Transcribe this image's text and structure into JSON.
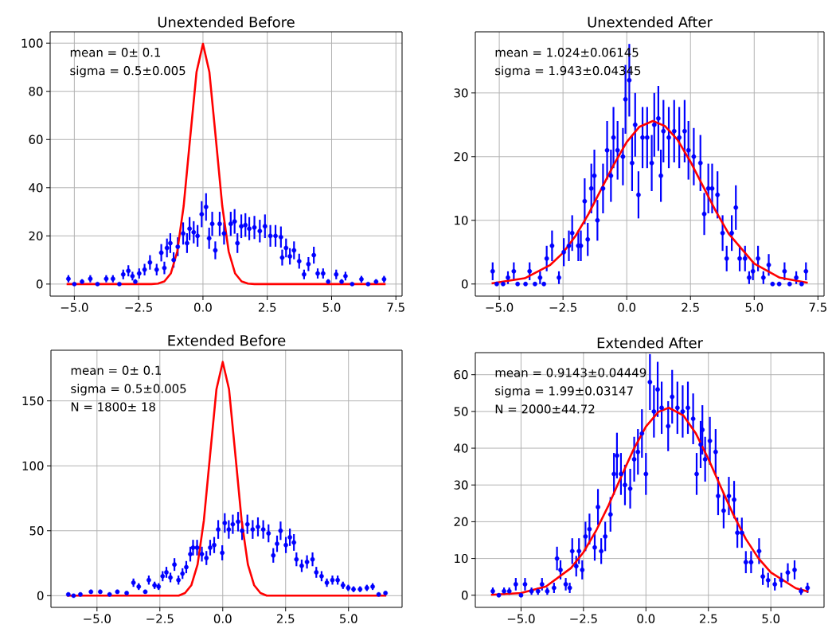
{
  "chart_data": [
    {
      "type": "scatter",
      "title": "Unextended Before",
      "xlim": [
        -5.94,
        7.74
      ],
      "ylim": [
        -5,
        104.7
      ],
      "grid": true,
      "xticks": [
        {
          "value": -5,
          "label": "−5.0"
        },
        {
          "value": -2.5,
          "label": "−2.5"
        },
        {
          "value": 0,
          "label": "0.0"
        },
        {
          "value": 2.5,
          "label": "2.5"
        },
        {
          "value": 5,
          "label": "5.0"
        },
        {
          "value": 7.5,
          "label": "7.5"
        }
      ],
      "yticks": [
        0,
        20,
        40,
        60,
        80,
        100
      ],
      "annotations": [
        "mean = 0± 0.1",
        "sigma = 0.5±0.005"
      ],
      "series": [
        {
          "type": "scatter",
          "color": "#0000ff",
          "marker": "circle",
          "x": [
            -5.23,
            -5.0,
            -4.7,
            -4.38,
            -4.1,
            -3.76,
            -3.5,
            -3.25,
            -3.1,
            -2.9,
            -2.74,
            -2.63,
            -2.48,
            -2.27,
            -2.06,
            -1.8,
            -1.62,
            -1.5,
            -1.4,
            -1.27,
            -1.14,
            -0.98,
            -0.77,
            -0.62,
            -0.52,
            -0.36,
            -0.21,
            -0.05,
            0.12,
            0.24,
            0.36,
            0.48,
            0.65,
            0.82,
            1.08,
            1.23,
            1.34,
            1.49,
            1.65,
            1.8,
            2.0,
            2.21,
            2.41,
            2.62,
            2.82,
            3.03,
            3.08,
            3.23,
            3.38,
            3.54,
            3.74,
            3.93,
            4.1,
            4.31,
            4.46,
            4.67,
            4.87,
            5.18,
            5.39,
            5.54,
            5.8,
            6.16,
            6.42,
            6.73,
            7.04
          ],
          "values": [
            2.2,
            0,
            1,
            2.2,
            0,
            2.2,
            2.2,
            0,
            4,
            5.5,
            3.3,
            1,
            4.4,
            6,
            9,
            6,
            13,
            6.7,
            15,
            17,
            10,
            15.5,
            21,
            17,
            23,
            21.5,
            20,
            29,
            32,
            19,
            25,
            14,
            25,
            21,
            25,
            26,
            17,
            24,
            24.5,
            23,
            23.5,
            22,
            24,
            20,
            20,
            19.5,
            11,
            15,
            11.5,
            14,
            9.5,
            4,
            8.3,
            12,
            4.4,
            4.4,
            1,
            4,
            1,
            3.3,
            0,
            2,
            0,
            1,
            2
          ],
          "errors": [
            1.5,
            0,
            1,
            1.5,
            0,
            1.5,
            1.5,
            0,
            2,
            2.3,
            1.8,
            1,
            2.1,
            2.4,
            3,
            2.4,
            3.6,
            2.6,
            3.9,
            4.1,
            3.2,
            3.9,
            4.6,
            4.1,
            4.8,
            4.6,
            4.5,
            5.4,
            5.7,
            4.4,
            5,
            3.7,
            5,
            4.6,
            5,
            5.1,
            4.1,
            4.9,
            4.9,
            4.8,
            4.8,
            4.7,
            4.9,
            4.5,
            4.5,
            4.4,
            3.3,
            3.9,
            3.4,
            3.7,
            3.1,
            2,
            2.9,
            3.5,
            2.1,
            2.1,
            1,
            2,
            1,
            1.8,
            0,
            1.4,
            0,
            1,
            1.4
          ]
        },
        {
          "type": "line",
          "color": "#ff0000",
          "x": [
            -5.3,
            -2,
            -1.75,
            -1.5,
            -1.25,
            -1,
            -0.75,
            -0.5,
            -0.25,
            0,
            0.25,
            0.5,
            0.75,
            1,
            1.25,
            1.5,
            1.75,
            2,
            7.1
          ],
          "values": [
            0,
            0,
            0.2,
            1.1,
            4.4,
            13.5,
            32.4,
            60.5,
            88,
            99.7,
            88,
            60.5,
            32.4,
            13.5,
            4.4,
            1.1,
            0.2,
            0,
            0
          ]
        }
      ]
    },
    {
      "type": "scatter",
      "title": "Unextended After",
      "xlim": [
        -5.94,
        7.74
      ],
      "ylim": [
        -1.9,
        39.6
      ],
      "grid": true,
      "xticks": [
        {
          "value": -5,
          "label": "−5.0"
        },
        {
          "value": -2.5,
          "label": "−2.5"
        },
        {
          "value": 0,
          "label": "0.0"
        },
        {
          "value": 2.5,
          "label": "2.5"
        },
        {
          "value": 5,
          "label": "5.0"
        },
        {
          "value": 7.5,
          "label": "7.5"
        }
      ],
      "yticks": [
        0,
        10,
        20,
        30
      ],
      "annotations": [
        "mean = 1.024±0.06145",
        "sigma = 1.943±0.04345"
      ],
      "series": [
        {
          "type": "scatter",
          "color": "#0000ff",
          "marker": "circle",
          "x": [
            -5.26,
            -5.1,
            -4.85,
            -4.66,
            -4.43,
            -4.28,
            -3.97,
            -3.81,
            -3.6,
            -3.4,
            -3.25,
            -3.14,
            -2.93,
            -2.66,
            -2.47,
            -2.27,
            -2.14,
            -1.9,
            -1.8,
            -1.65,
            -1.53,
            -1.39,
            -1.27,
            -1.15,
            -0.93,
            -0.77,
            -0.62,
            -0.52,
            -0.36,
            -0.15,
            -0.05,
            0.1,
            0.21,
            0.33,
            0.46,
            0.62,
            0.8,
            0.98,
            1.08,
            1.24,
            1.34,
            1.44,
            1.65,
            1.86,
            2.06,
            2.27,
            2.42,
            2.63,
            2.89,
            3.04,
            3.2,
            3.35,
            3.56,
            3.76,
            3.92,
            4.12,
            4.28,
            4.43,
            4.64,
            4.8,
            4.95,
            5.15,
            5.36,
            5.57,
            5.72,
            5.98,
            6.19,
            6.39,
            6.65,
            6.86,
            7.03
          ],
          "values": [
            2,
            0,
            0,
            1,
            2,
            0,
            0,
            2,
            0,
            1,
            0,
            4,
            6,
            1,
            5,
            6,
            8,
            6,
            6,
            13,
            7,
            15,
            17,
            10,
            15,
            21,
            17,
            23,
            21,
            20,
            29,
            32,
            19,
            25,
            14,
            23,
            23,
            19,
            25,
            26,
            17,
            24,
            23,
            24,
            23,
            24,
            21,
            20,
            19,
            11,
            15,
            15,
            14,
            8,
            4,
            8,
            12,
            4,
            4,
            1,
            2,
            4,
            1,
            3,
            0,
            0,
            2,
            0,
            1,
            0,
            2
          ],
          "errors": [
            1.4,
            0,
            0,
            1,
            1.4,
            0,
            0,
            1.4,
            0,
            1,
            0,
            2,
            2.4,
            1,
            2.2,
            2.4,
            2.8,
            2.4,
            2.4,
            3.6,
            2.6,
            3.9,
            4.1,
            3.2,
            3.9,
            4.6,
            4.1,
            4.8,
            4.6,
            4.5,
            5.4,
            5.7,
            4.4,
            5,
            3.7,
            4.8,
            4.8,
            4.4,
            5,
            5.1,
            4.1,
            4.9,
            4.8,
            4.9,
            4.8,
            4.9,
            4.6,
            4.5,
            4.4,
            3.3,
            3.9,
            3.9,
            3.7,
            2.8,
            2,
            2.8,
            3.5,
            2,
            2,
            1,
            1.4,
            2,
            1,
            1.7,
            0,
            0,
            1.4,
            0,
            1,
            0,
            1.4
          ]
        },
        {
          "type": "line",
          "color": "#ff0000",
          "x": [
            -5.3,
            -4,
            -3,
            -2.5,
            -2,
            -1.5,
            -1,
            -0.5,
            0,
            0.5,
            1.024,
            1.5,
            2,
            2.5,
            3,
            3.5,
            4,
            5,
            6,
            7.1
          ],
          "values": [
            0.1,
            0.9,
            3,
            4.9,
            7.6,
            11,
            14.9,
            18.8,
            22.3,
            24.7,
            25.6,
            24.8,
            22.6,
            19.2,
            15.3,
            11.4,
            7.9,
            3.2,
            1,
            0.2
          ]
        }
      ]
    },
    {
      "type": "scatter",
      "title": "Extended Before",
      "xlim": [
        -6.83,
        7.13
      ],
      "ylim": [
        -9,
        189
      ],
      "grid": true,
      "xticks": [
        {
          "value": -5,
          "label": "−5.0"
        },
        {
          "value": -2.5,
          "label": "−2.5"
        },
        {
          "value": 0,
          "label": "0.0"
        },
        {
          "value": 2.5,
          "label": "2.5"
        },
        {
          "value": 5,
          "label": "5.0"
        }
      ],
      "yticks": [
        0,
        50,
        100,
        150
      ],
      "annotations": [
        "mean = 0± 0.1",
        "sigma = 0.5±0.005",
        "N = 1800± 18"
      ],
      "series": [
        {
          "type": "scatter",
          "color": "#0000ff",
          "marker": "circle",
          "x": [
            -6.14,
            -5.93,
            -5.66,
            -5.24,
            -4.87,
            -4.5,
            -4.19,
            -3.82,
            -3.55,
            -3.34,
            -3.08,
            -2.94,
            -2.71,
            -2.55,
            -2.39,
            -2.24,
            -2.08,
            -1.92,
            -1.76,
            -1.6,
            -1.45,
            -1.29,
            -1.18,
            -1.02,
            -0.83,
            -0.65,
            -0.5,
            -0.34,
            -0.18,
            -0.02,
            0.08,
            0.24,
            0.4,
            0.61,
            0.77,
            0.98,
            1.19,
            1.4,
            1.61,
            1.82,
            2.01,
            2.16,
            2.3,
            2.51,
            2.67,
            2.83,
            2.93,
            3.14,
            3.35,
            3.57,
            3.72,
            3.93,
            4.14,
            4.36,
            4.57,
            4.78,
            4.99,
            5.2,
            5.46,
            5.73,
            5.96,
            6.2,
            6.47
          ],
          "values": [
            1,
            0,
            1,
            3,
            3,
            1,
            3,
            2,
            10,
            7,
            3,
            12,
            8,
            7,
            15,
            18,
            14,
            24,
            12,
            17,
            22,
            32,
            37,
            37,
            32,
            29,
            37,
            39,
            51,
            33,
            56,
            51,
            55,
            57,
            50,
            55,
            51,
            53,
            51,
            48,
            31,
            40,
            50,
            39,
            45,
            41,
            28,
            23,
            26,
            28,
            18,
            15,
            10,
            12,
            12,
            8,
            6,
            5,
            5,
            6,
            7,
            1,
            2
          ],
          "errors": [
            null,
            0,
            null,
            1.6,
            1.6,
            null,
            1.6,
            null,
            3.2,
            2.6,
            1.6,
            3.5,
            2.8,
            2.6,
            3.9,
            4.2,
            3.7,
            4.9,
            3.5,
            4.1,
            4.7,
            5.7,
            6,
            6,
            5.7,
            5.4,
            6,
            6.2,
            7.2,
            5.8,
            7.5,
            7.1,
            7.4,
            7.5,
            7.1,
            7.4,
            7.2,
            7.3,
            7.1,
            6.9,
            5.6,
            6.3,
            7.1,
            6.2,
            6.7,
            6.4,
            5.3,
            4.8,
            5.1,
            5.3,
            4.2,
            3.9,
            3.2,
            3.5,
            3.5,
            2.8,
            2.4,
            2.2,
            2.2,
            2.4,
            2.6,
            null,
            null
          ]
        },
        {
          "type": "line",
          "color": "#ff0000",
          "x": [
            -6.2,
            -2,
            -1.75,
            -1.5,
            -1.25,
            -1,
            -0.75,
            -0.5,
            -0.25,
            0,
            0.25,
            0.5,
            0.75,
            1,
            1.25,
            1.5,
            1.75,
            2,
            6.5
          ],
          "values": [
            0,
            0,
            0,
            2,
            8,
            24,
            58,
            109,
            159,
            180,
            159,
            109,
            58,
            24,
            8,
            2,
            0,
            0,
            0
          ]
        }
      ]
    },
    {
      "type": "scatter",
      "title": "Extended After",
      "xlim": [
        -6.83,
        7.13
      ],
      "ylim": [
        -3.3,
        66
      ],
      "grid": true,
      "xticks": [
        {
          "value": -5,
          "label": "−5.0"
        },
        {
          "value": -2.5,
          "label": "−2.5"
        },
        {
          "value": 0,
          "label": "0.0"
        },
        {
          "value": 2.5,
          "label": "2.5"
        },
        {
          "value": 5,
          "label": "5.0"
        }
      ],
      "yticks": [
        0,
        10,
        20,
        30,
        40,
        50,
        60
      ],
      "annotations": [
        "mean = 0.9143±0.04449",
        "sigma = 1.99±0.03147",
        "N = 2000±44.72"
      ],
      "series": [
        {
          "type": "scatter",
          "color": "#0000ff",
          "marker": "circle",
          "x": [
            -6.13,
            -5.89,
            -5.68,
            -5.47,
            -5.21,
            -5.0,
            -4.84,
            -4.58,
            -4.32,
            -4.16,
            -3.95,
            -3.68,
            -3.56,
            -3.42,
            -3.21,
            -3.05,
            -2.95,
            -2.79,
            -2.68,
            -2.55,
            -2.42,
            -2.26,
            -2.05,
            -1.92,
            -1.79,
            -1.63,
            -1.42,
            -1.28,
            -1.16,
            -1.0,
            -0.84,
            -0.63,
            -0.47,
            -0.32,
            -0.16,
            0.0,
            0.16,
            0.32,
            0.47,
            0.63,
            0.89,
            1.05,
            1.26,
            1.47,
            1.68,
            1.89,
            2.03,
            2.19,
            2.26,
            2.37,
            2.56,
            2.79,
            2.89,
            3.11,
            3.32,
            3.53,
            3.66,
            3.84,
            4.0,
            4.21,
            4.53,
            4.68,
            4.89,
            5.16,
            5.42,
            5.68,
            5.95,
            6.21,
            6.47
          ],
          "values": [
            1.1,
            0,
            1.1,
            1.1,
            3,
            0,
            3,
            1.1,
            1.1,
            3,
            1.1,
            2,
            10,
            6.9,
            3,
            2,
            12,
            7.9,
            12,
            6.9,
            16,
            18,
            13,
            24,
            12,
            16,
            22,
            33,
            38,
            33,
            30,
            29,
            37,
            39,
            44,
            33,
            58,
            50,
            56,
            51,
            46,
            54,
            51,
            50,
            51,
            48,
            33,
            41,
            45,
            37,
            42,
            39,
            27,
            23,
            27,
            26,
            17,
            17,
            9,
            9,
            12,
            5.1,
            4.1,
            3,
            4.1,
            6.2,
            6.9,
            1.1,
            2
          ],
          "errors": [
            1,
            0,
            1,
            1,
            1.7,
            0,
            1.7,
            1,
            1,
            1.7,
            1,
            1.4,
            3.2,
            2.6,
            1.7,
            1.4,
            3.5,
            2.8,
            3.5,
            2.6,
            4,
            4.2,
            3.6,
            4.9,
            3.5,
            4,
            4.7,
            5.7,
            6.2,
            5.7,
            5.5,
            5.4,
            6.1,
            6.2,
            6.6,
            5.7,
            7.6,
            7.1,
            7.5,
            7.1,
            6.8,
            7.3,
            7.1,
            7.1,
            7.1,
            6.9,
            5.7,
            6.4,
            6.7,
            6.1,
            6.5,
            6.2,
            5.2,
            4.8,
            5.2,
            5.1,
            4.1,
            4.1,
            3,
            3,
            3.5,
            2.3,
            2,
            1.7,
            2,
            2.5,
            2.6,
            1,
            1.4
          ]
        },
        {
          "type": "line",
          "color": "#ff0000",
          "x": [
            -6.2,
            -5,
            -4,
            -3,
            -2.5,
            -2,
            -1.5,
            -1,
            -0.5,
            0,
            0.5,
            0.9143,
            1.5,
            2,
            2.5,
            3,
            3.5,
            4,
            4.5,
            5,
            6,
            6.5
          ],
          "values": [
            0.1,
            0.6,
            2.4,
            7.4,
            11.7,
            17.5,
            24.4,
            32.1,
            39.6,
            45.9,
            49.9,
            51,
            48.9,
            44,
            37.1,
            29.4,
            21.9,
            15.3,
            10.1,
            6.2,
            1.9,
            1.0
          ]
        }
      ]
    }
  ]
}
